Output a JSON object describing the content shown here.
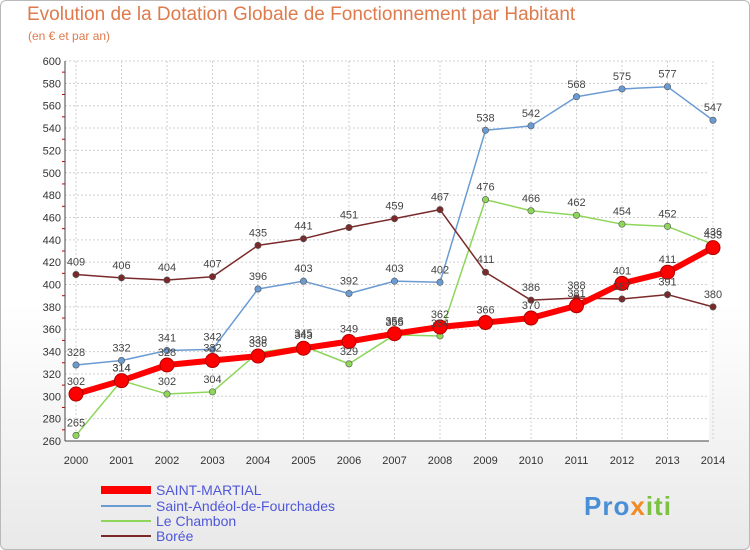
{
  "title": "Evolution de la Dotation Globale de Fonctionnement par Habitant",
  "subtitle": "(en € et par an)",
  "logo": {
    "p1": "Pro",
    "p2": "x",
    "p3": "iti"
  },
  "chart_data": {
    "type": "line",
    "title": "Evolution de la Dotation Globale de Fonctionnement par Habitant",
    "subtitle": "(en € et par an)",
    "x": [
      2000,
      2001,
      2002,
      2003,
      2004,
      2005,
      2006,
      2007,
      2008,
      2009,
      2010,
      2011,
      2012,
      2013,
      2014
    ],
    "ylim": [
      260,
      600
    ],
    "yticks": [
      260,
      280,
      300,
      320,
      340,
      360,
      380,
      400,
      420,
      440,
      460,
      480,
      500,
      520,
      540,
      560,
      580,
      600
    ],
    "grid": true,
    "legend": "bottom-left",
    "series": [
      {
        "name": "SAINT-MARTIAL",
        "color": "#ff0000",
        "values": [
          302,
          314,
          328,
          332,
          336,
          343,
          349,
          356,
          362,
          366,
          370,
          381,
          401,
          411,
          433
        ]
      },
      {
        "name": "Saint-Andéol-de-Fourchades",
        "color": "#6a9bd3",
        "values": [
          328,
          332,
          341,
          342,
          396,
          403,
          392,
          403,
          402,
          538,
          542,
          568,
          575,
          577,
          547
        ]
      },
      {
        "name": "Le Chambon",
        "color": "#8ed65a",
        "values": [
          265,
          314,
          302,
          304,
          339,
          345,
          329,
          355,
          354,
          476,
          466,
          462,
          454,
          452,
          436
        ]
      },
      {
        "name": "Borée",
        "color": "#7a2a2a",
        "values": [
          409,
          406,
          404,
          407,
          435,
          441,
          451,
          459,
          467,
          411,
          386,
          388,
          387,
          391,
          380
        ]
      }
    ]
  }
}
